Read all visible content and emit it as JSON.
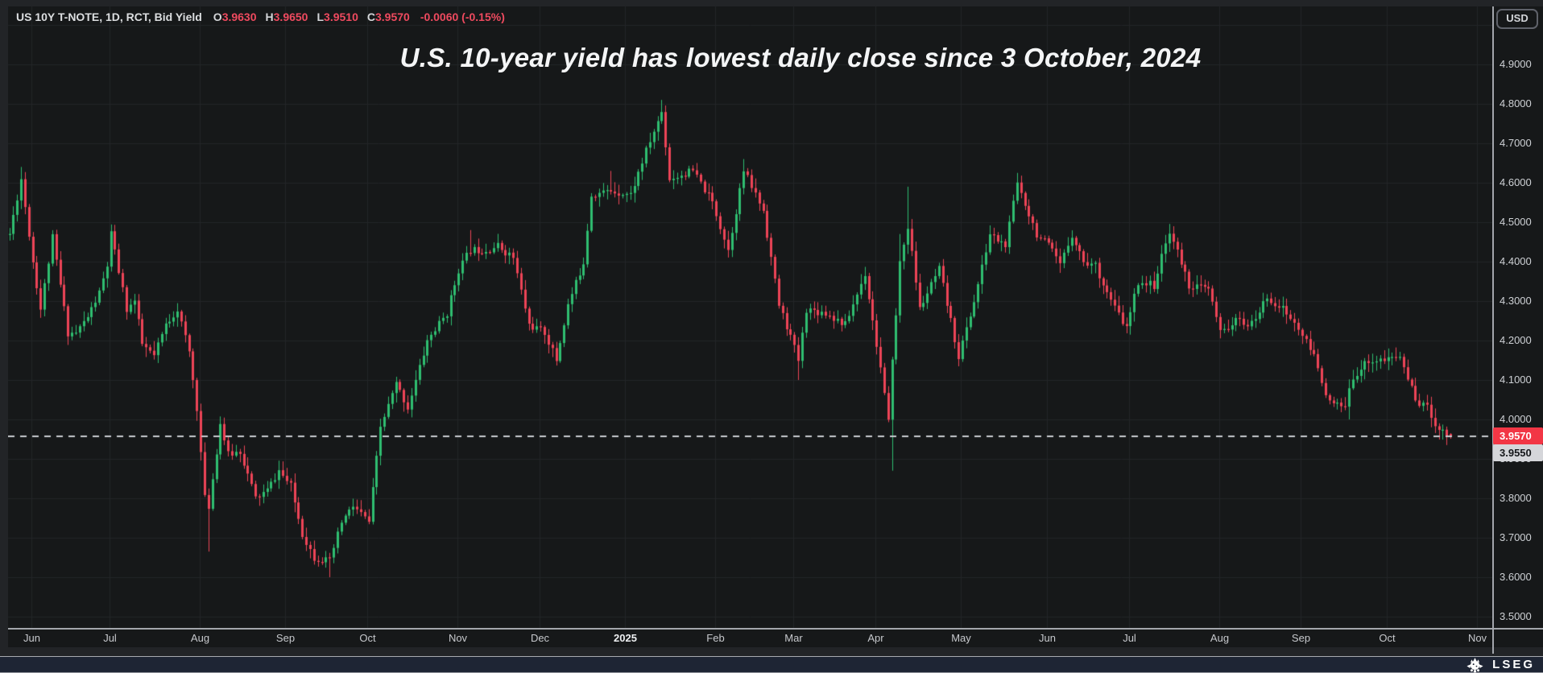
{
  "header": {
    "instrument": "US 10Y T-NOTE, 1D, RCT, Bid Yield",
    "open_label": "O",
    "open": "3.9630",
    "high_label": "H",
    "high": "3.9650",
    "low_label": "L",
    "low": "3.9510",
    "close_label": "C",
    "close": "3.9570",
    "change": "-0.0060 (-0.15%)"
  },
  "title": "U.S. 10-year yield has lowest daily close since 3 October, 2024",
  "currency_button": "USD",
  "footer": {
    "brand": "LSEG"
  },
  "price_axis": {
    "labels": [
      "4.9000",
      "4.8000",
      "4.7000",
      "4.6000",
      "4.5000",
      "4.4000",
      "4.3000",
      "4.2000",
      "4.1000",
      "4.0000",
      "3.9000",
      "3.8000",
      "3.7000",
      "3.6000",
      "3.5000"
    ],
    "last_price_badge": "3.9570",
    "prev_close_badge": "3.9550"
  },
  "time_axis": {
    "labels": [
      "Jun",
      "Jul",
      "Aug",
      "Sep",
      "Oct",
      "Nov",
      "Dec",
      "2025",
      "Feb",
      "Mar",
      "Apr",
      "May",
      "Jun",
      "Jul",
      "Aug",
      "Sep",
      "Oct",
      "Nov"
    ],
    "year_label_index": 7
  },
  "chart_data": {
    "type": "candlestick",
    "instrument": "US 10Y T-NOTE",
    "interval": "1D",
    "field": "Bid Yield",
    "y_range": [
      3.45,
      5.05
    ],
    "grid_step": 0.1,
    "x_range": {
      "start": "2024-05-24",
      "end": "2025-10-23"
    },
    "last": {
      "open": 3.963,
      "high": 3.965,
      "low": 3.951,
      "close": 3.957
    },
    "last_price_line": 3.957,
    "prev_close": 3.955,
    "colors": {
      "up": "#2fbe70",
      "down": "#ee4457",
      "badge": "#f23645",
      "grid": "#232528",
      "dashed": "#caccd1"
    },
    "anchors": [
      [
        "2024-05-24",
        4.47
      ],
      [
        "2024-05-29",
        4.61
      ],
      [
        "2024-06-03",
        4.4
      ],
      [
        "2024-06-05",
        4.28
      ],
      [
        "2024-06-10",
        4.46
      ],
      [
        "2024-06-14",
        4.22
      ],
      [
        "2024-06-18",
        4.22
      ],
      [
        "2024-06-21",
        4.26
      ],
      [
        "2024-06-26",
        4.32
      ],
      [
        "2024-06-28",
        4.39
      ],
      [
        "2024-07-01",
        4.47
      ],
      [
        "2024-07-05",
        4.28
      ],
      [
        "2024-07-09",
        4.3
      ],
      [
        "2024-07-11",
        4.19
      ],
      [
        "2024-07-16",
        4.16
      ],
      [
        "2024-07-19",
        4.24
      ],
      [
        "2024-07-24",
        4.28
      ],
      [
        "2024-07-29",
        4.17
      ],
      [
        "2024-07-31",
        4.03
      ],
      [
        "2024-08-02",
        3.8
      ],
      [
        "2024-08-05",
        3.78
      ],
      [
        "2024-08-08",
        3.99
      ],
      [
        "2024-08-12",
        3.91
      ],
      [
        "2024-08-15",
        3.92
      ],
      [
        "2024-08-21",
        3.8
      ],
      [
        "2024-08-26",
        3.82
      ],
      [
        "2024-08-29",
        3.87
      ],
      [
        "2024-09-03",
        3.83
      ],
      [
        "2024-09-06",
        3.71
      ],
      [
        "2024-09-11",
        3.65
      ],
      [
        "2024-09-17",
        3.64
      ],
      [
        "2024-09-20",
        3.74
      ],
      [
        "2024-09-25",
        3.78
      ],
      [
        "2024-10-01",
        3.74
      ],
      [
        "2024-10-04",
        3.98
      ],
      [
        "2024-10-10",
        4.09
      ],
      [
        "2024-10-15",
        4.03
      ],
      [
        "2024-10-22",
        4.2
      ],
      [
        "2024-10-29",
        4.27
      ],
      [
        "2024-11-01",
        4.38
      ],
      [
        "2024-11-06",
        4.43
      ],
      [
        "2024-11-12",
        4.43
      ],
      [
        "2024-11-15",
        4.44
      ],
      [
        "2024-11-21",
        4.41
      ],
      [
        "2024-11-27",
        4.24
      ],
      [
        "2024-12-03",
        4.22
      ],
      [
        "2024-12-06",
        4.15
      ],
      [
        "2024-12-11",
        4.29
      ],
      [
        "2024-12-17",
        4.4
      ],
      [
        "2024-12-19",
        4.57
      ],
      [
        "2024-12-26",
        4.58
      ],
      [
        "2025-01-02",
        4.57
      ],
      [
        "2025-01-08",
        4.68
      ],
      [
        "2025-01-14",
        4.78
      ],
      [
        "2025-01-16",
        4.61
      ],
      [
        "2025-01-24",
        4.63
      ],
      [
        "2025-01-31",
        4.55
      ],
      [
        "2025-02-06",
        4.43
      ],
      [
        "2025-02-12",
        4.63
      ],
      [
        "2025-02-19",
        4.53
      ],
      [
        "2025-02-25",
        4.29
      ],
      [
        "2025-02-28",
        4.21
      ],
      [
        "2025-03-04",
        4.15
      ],
      [
        "2025-03-06",
        4.28
      ],
      [
        "2025-03-13",
        4.27
      ],
      [
        "2025-03-20",
        4.24
      ],
      [
        "2025-03-27",
        4.37
      ],
      [
        "2025-04-02",
        4.13
      ],
      [
        "2025-04-04",
        3.99
      ],
      [
        "2025-04-07",
        4.16
      ],
      [
        "2025-04-08",
        4.26
      ],
      [
        "2025-04-09",
        4.4
      ],
      [
        "2025-04-11",
        4.49
      ],
      [
        "2025-04-16",
        4.28
      ],
      [
        "2025-04-23",
        4.38
      ],
      [
        "2025-04-30",
        4.16
      ],
      [
        "2025-05-06",
        4.3
      ],
      [
        "2025-05-12",
        4.47
      ],
      [
        "2025-05-16",
        4.44
      ],
      [
        "2025-05-21",
        4.6
      ],
      [
        "2025-05-28",
        4.47
      ],
      [
        "2025-06-02",
        4.44
      ],
      [
        "2025-06-05",
        4.39
      ],
      [
        "2025-06-10",
        4.47
      ],
      [
        "2025-06-13",
        4.4
      ],
      [
        "2025-06-18",
        4.39
      ],
      [
        "2025-06-24",
        4.3
      ],
      [
        "2025-06-30",
        4.23
      ],
      [
        "2025-07-03",
        4.35
      ],
      [
        "2025-07-09",
        4.34
      ],
      [
        "2025-07-15",
        4.48
      ],
      [
        "2025-07-22",
        4.34
      ],
      [
        "2025-07-29",
        4.33
      ],
      [
        "2025-08-01",
        4.22
      ],
      [
        "2025-08-07",
        4.25
      ],
      [
        "2025-08-13",
        4.24
      ],
      [
        "2025-08-19",
        4.31
      ],
      [
        "2025-08-25",
        4.28
      ],
      [
        "2025-08-29",
        4.23
      ],
      [
        "2025-09-04",
        4.16
      ],
      [
        "2025-09-10",
        4.04
      ],
      [
        "2025-09-16",
        4.03
      ],
      [
        "2025-09-18",
        4.11
      ],
      [
        "2025-09-24",
        4.15
      ],
      [
        "2025-09-30",
        4.15
      ],
      [
        "2025-10-06",
        4.16
      ],
      [
        "2025-10-10",
        4.05
      ],
      [
        "2025-10-15",
        4.03
      ],
      [
        "2025-10-17",
        3.99
      ],
      [
        "2025-10-21",
        3.97
      ],
      [
        "2025-10-23",
        3.957
      ]
    ],
    "extremes": [
      {
        "date": "2024-05-29",
        "high": 4.64
      },
      {
        "date": "2024-08-05",
        "low": 3.665
      },
      {
        "date": "2024-09-17",
        "low": 3.6
      },
      {
        "date": "2024-11-06",
        "high": 4.48
      },
      {
        "date": "2024-12-26",
        "high": 4.63
      },
      {
        "date": "2025-01-14",
        "high": 4.81
      },
      {
        "date": "2025-02-12",
        "high": 4.66
      },
      {
        "date": "2025-03-04",
        "low": 4.1
      },
      {
        "date": "2025-04-07",
        "low": 3.87
      },
      {
        "date": "2025-04-09",
        "high": 4.47
      },
      {
        "date": "2025-04-11",
        "high": 4.59
      },
      {
        "date": "2025-05-21",
        "high": 4.625
      },
      {
        "date": "2025-07-15",
        "high": 4.495
      },
      {
        "date": "2025-09-17",
        "low": 4.0
      },
      {
        "date": "2025-10-22",
        "low": 3.935
      }
    ]
  }
}
